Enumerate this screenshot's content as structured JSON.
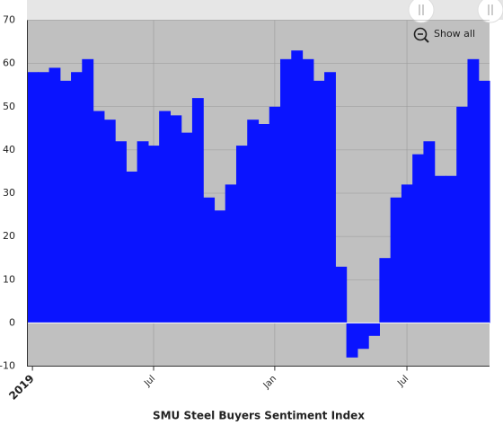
{
  "chart_data": {
    "type": "step-area",
    "title": "SMU Steel Buyers Sentiment Index",
    "zoom_button": "Show all",
    "categories": [
      "2019",
      null,
      null,
      null,
      null,
      null,
      null,
      null,
      null,
      null,
      null,
      "Jul",
      null,
      null,
      null,
      null,
      null,
      null,
      null,
      null,
      null,
      null,
      "Jan",
      null,
      null,
      null,
      null,
      null,
      null,
      null,
      null,
      null,
      null,
      null,
      "Jul",
      null,
      null,
      null,
      null,
      null,
      null,
      null
    ],
    "values": [
      58,
      58,
      59,
      56,
      58,
      61,
      49,
      47,
      42,
      35,
      42,
      41,
      49,
      48,
      44,
      52,
      29,
      26,
      32,
      41,
      47,
      46,
      50,
      61,
      63,
      61,
      56,
      58,
      13,
      -8,
      -6,
      -3,
      15,
      29,
      32,
      39,
      42,
      34,
      34,
      50,
      61,
      56
    ],
    "color": "#0a14ff",
    "ylim": [
      -10,
      70
    ],
    "yticks": [
      -10,
      0,
      10,
      20,
      30,
      40,
      50,
      60,
      70
    ],
    "grid": true
  }
}
